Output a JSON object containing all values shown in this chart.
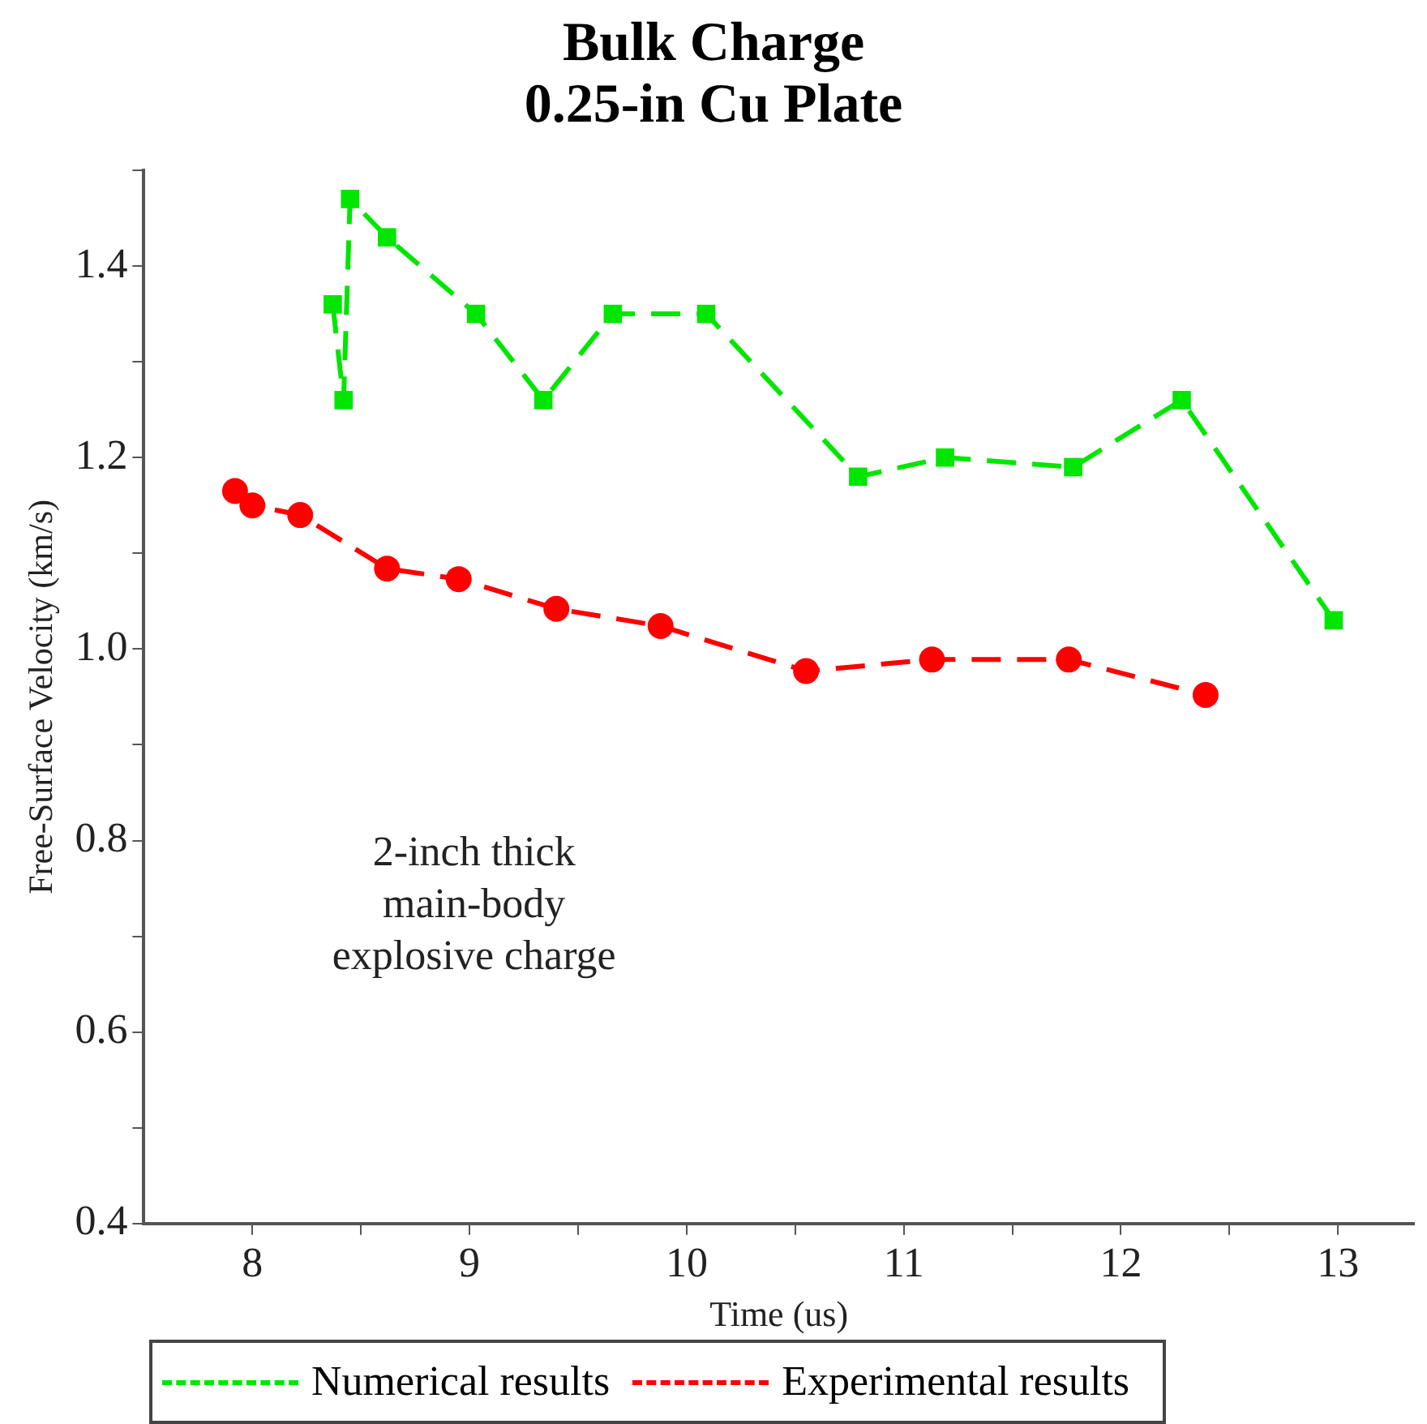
{
  "chart_data": {
    "type": "line",
    "title": "Bulk Charge\n0.25-in Cu Plate",
    "xlabel": "Time (us)",
    "ylabel": "Free-Surface Velocity (km/s)",
    "xlim": [
      7.5,
      13.35
    ],
    "xticks": [
      8,
      {
        "value": 8.5,
        "label": null
      },
      9,
      {
        "value": 9.5,
        "label": null
      },
      10,
      {
        "value": 10.5,
        "label": null
      },
      11,
      {
        "value": 11.5,
        "label": null
      },
      12,
      {
        "value": 12.5,
        "label": null
      },
      13
    ],
    "ylim": [
      0.4,
      1.5
    ],
    "yticks": [
      {
        "value": 0.4,
        "label": "0.4"
      },
      {
        "value": 0.5,
        "label": null
      },
      {
        "value": 0.6,
        "label": "0.6"
      },
      {
        "value": 0.7,
        "label": null
      },
      {
        "value": 0.8,
        "label": "0.8"
      },
      {
        "value": 0.9,
        "label": null
      },
      {
        "value": 1.0,
        "label": "1.0"
      },
      {
        "value": 1.1,
        "label": null
      },
      {
        "value": 1.2,
        "label": "1.2"
      },
      {
        "value": 1.3,
        "label": null
      },
      {
        "value": 1.4,
        "label": "1.4"
      },
      {
        "value": 1.5,
        "label": null
      }
    ],
    "grid": false,
    "legend": "bottom",
    "line_style": "dashed",
    "annotations": [
      "2-inch thick\nmain-body\nexplosive charge"
    ],
    "series": [
      {
        "name": "Numerical results",
        "color": "#00e600",
        "marker": "square",
        "x": [
          8.37,
          8.42,
          8.45,
          8.62,
          9.03,
          9.34,
          9.66,
          10.09,
          10.79,
          11.19,
          11.78,
          12.28,
          12.98
        ],
        "values": [
          1.36,
          1.26,
          1.47,
          1.43,
          1.35,
          1.26,
          1.35,
          1.35,
          1.18,
          1.2,
          1.19,
          1.26,
          1.03
        ]
      },
      {
        "name": "Experimental results",
        "color": "#ff0000",
        "marker": "circle",
        "x": [
          7.92,
          8.0,
          8.22,
          8.62,
          8.95,
          9.4,
          9.88,
          10.55,
          11.13,
          11.76,
          12.39
        ],
        "values": [
          1.165,
          1.15,
          1.14,
          1.084,
          1.073,
          1.042,
          1.024,
          0.977,
          0.989,
          0.989,
          0.952
        ]
      }
    ]
  }
}
